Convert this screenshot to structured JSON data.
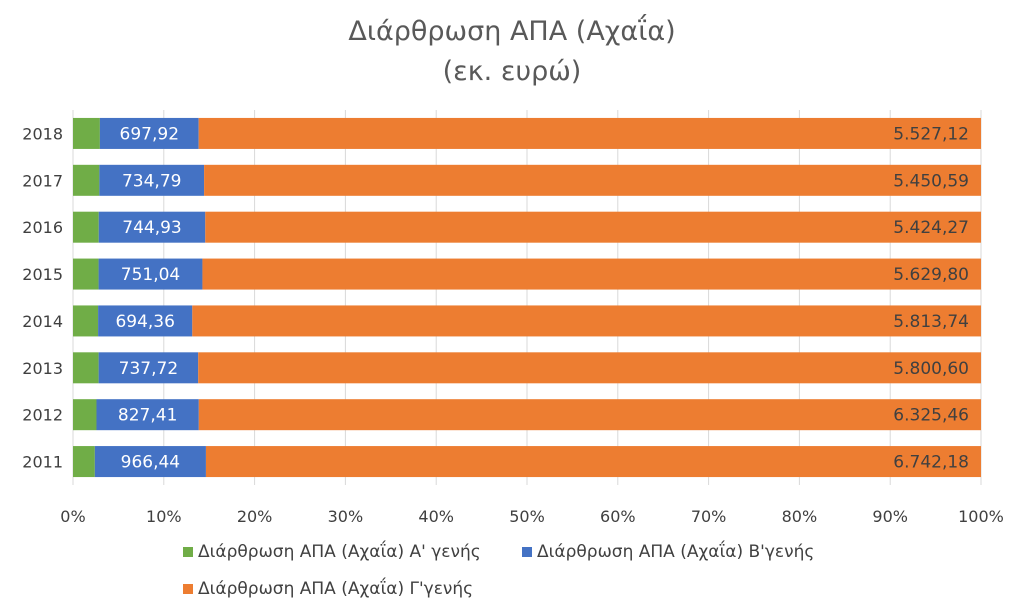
{
  "chart_data": {
    "type": "bar",
    "orientation": "horizontal",
    "stacked": "percent",
    "title": "Διάρθρωση ΑΠΑ (Αχαΐα)",
    "subtitle": "(εκ. ευρώ)",
    "categories": [
      "2011",
      "2012",
      "2013",
      "2014",
      "2015",
      "2016",
      "2017",
      "2018"
    ],
    "series": [
      {
        "name": "Διάρθρωση ΑΠΑ (Αχαΐα) Α' γενής",
        "color": "#70AD47",
        "values": [
          190,
          190,
          190,
          185,
          185,
          180,
          185,
          190
        ],
        "value_labels": [
          "",
          "",
          "",
          "",
          "",
          "",
          "",
          ""
        ]
      },
      {
        "name": "Διάρθρωση ΑΠΑ (Αχαΐα) Β'γενής",
        "color": "#4472C4",
        "values": [
          966.44,
          827.41,
          737.72,
          694.36,
          751.04,
          744.93,
          734.79,
          697.92
        ],
        "value_labels": [
          "966,44",
          "827,41",
          "737,72",
          "694,36",
          "751,04",
          "744,93",
          "734,79",
          "697,92"
        ]
      },
      {
        "name": "Διάρθρωση ΑΠΑ (Αχαΐα) Γ'γενής",
        "color": "#ED7D31",
        "values": [
          6742.18,
          6325.46,
          5800.6,
          5813.74,
          5629.8,
          5424.27,
          5450.59,
          5527.12
        ],
        "value_labels": [
          "6.742,18",
          "6.325,46",
          "5.800,60",
          "5.813,74",
          "5.629,80",
          "5.424,27",
          "5.450,59",
          "5.527,12"
        ]
      }
    ],
    "xlim": [
      0,
      1
    ],
    "x_ticks": [
      "0%",
      "10%",
      "20%",
      "30%",
      "40%",
      "50%",
      "60%",
      "70%",
      "80%",
      "90%",
      "100%"
    ],
    "grid": true,
    "legend_position": "bottom"
  }
}
